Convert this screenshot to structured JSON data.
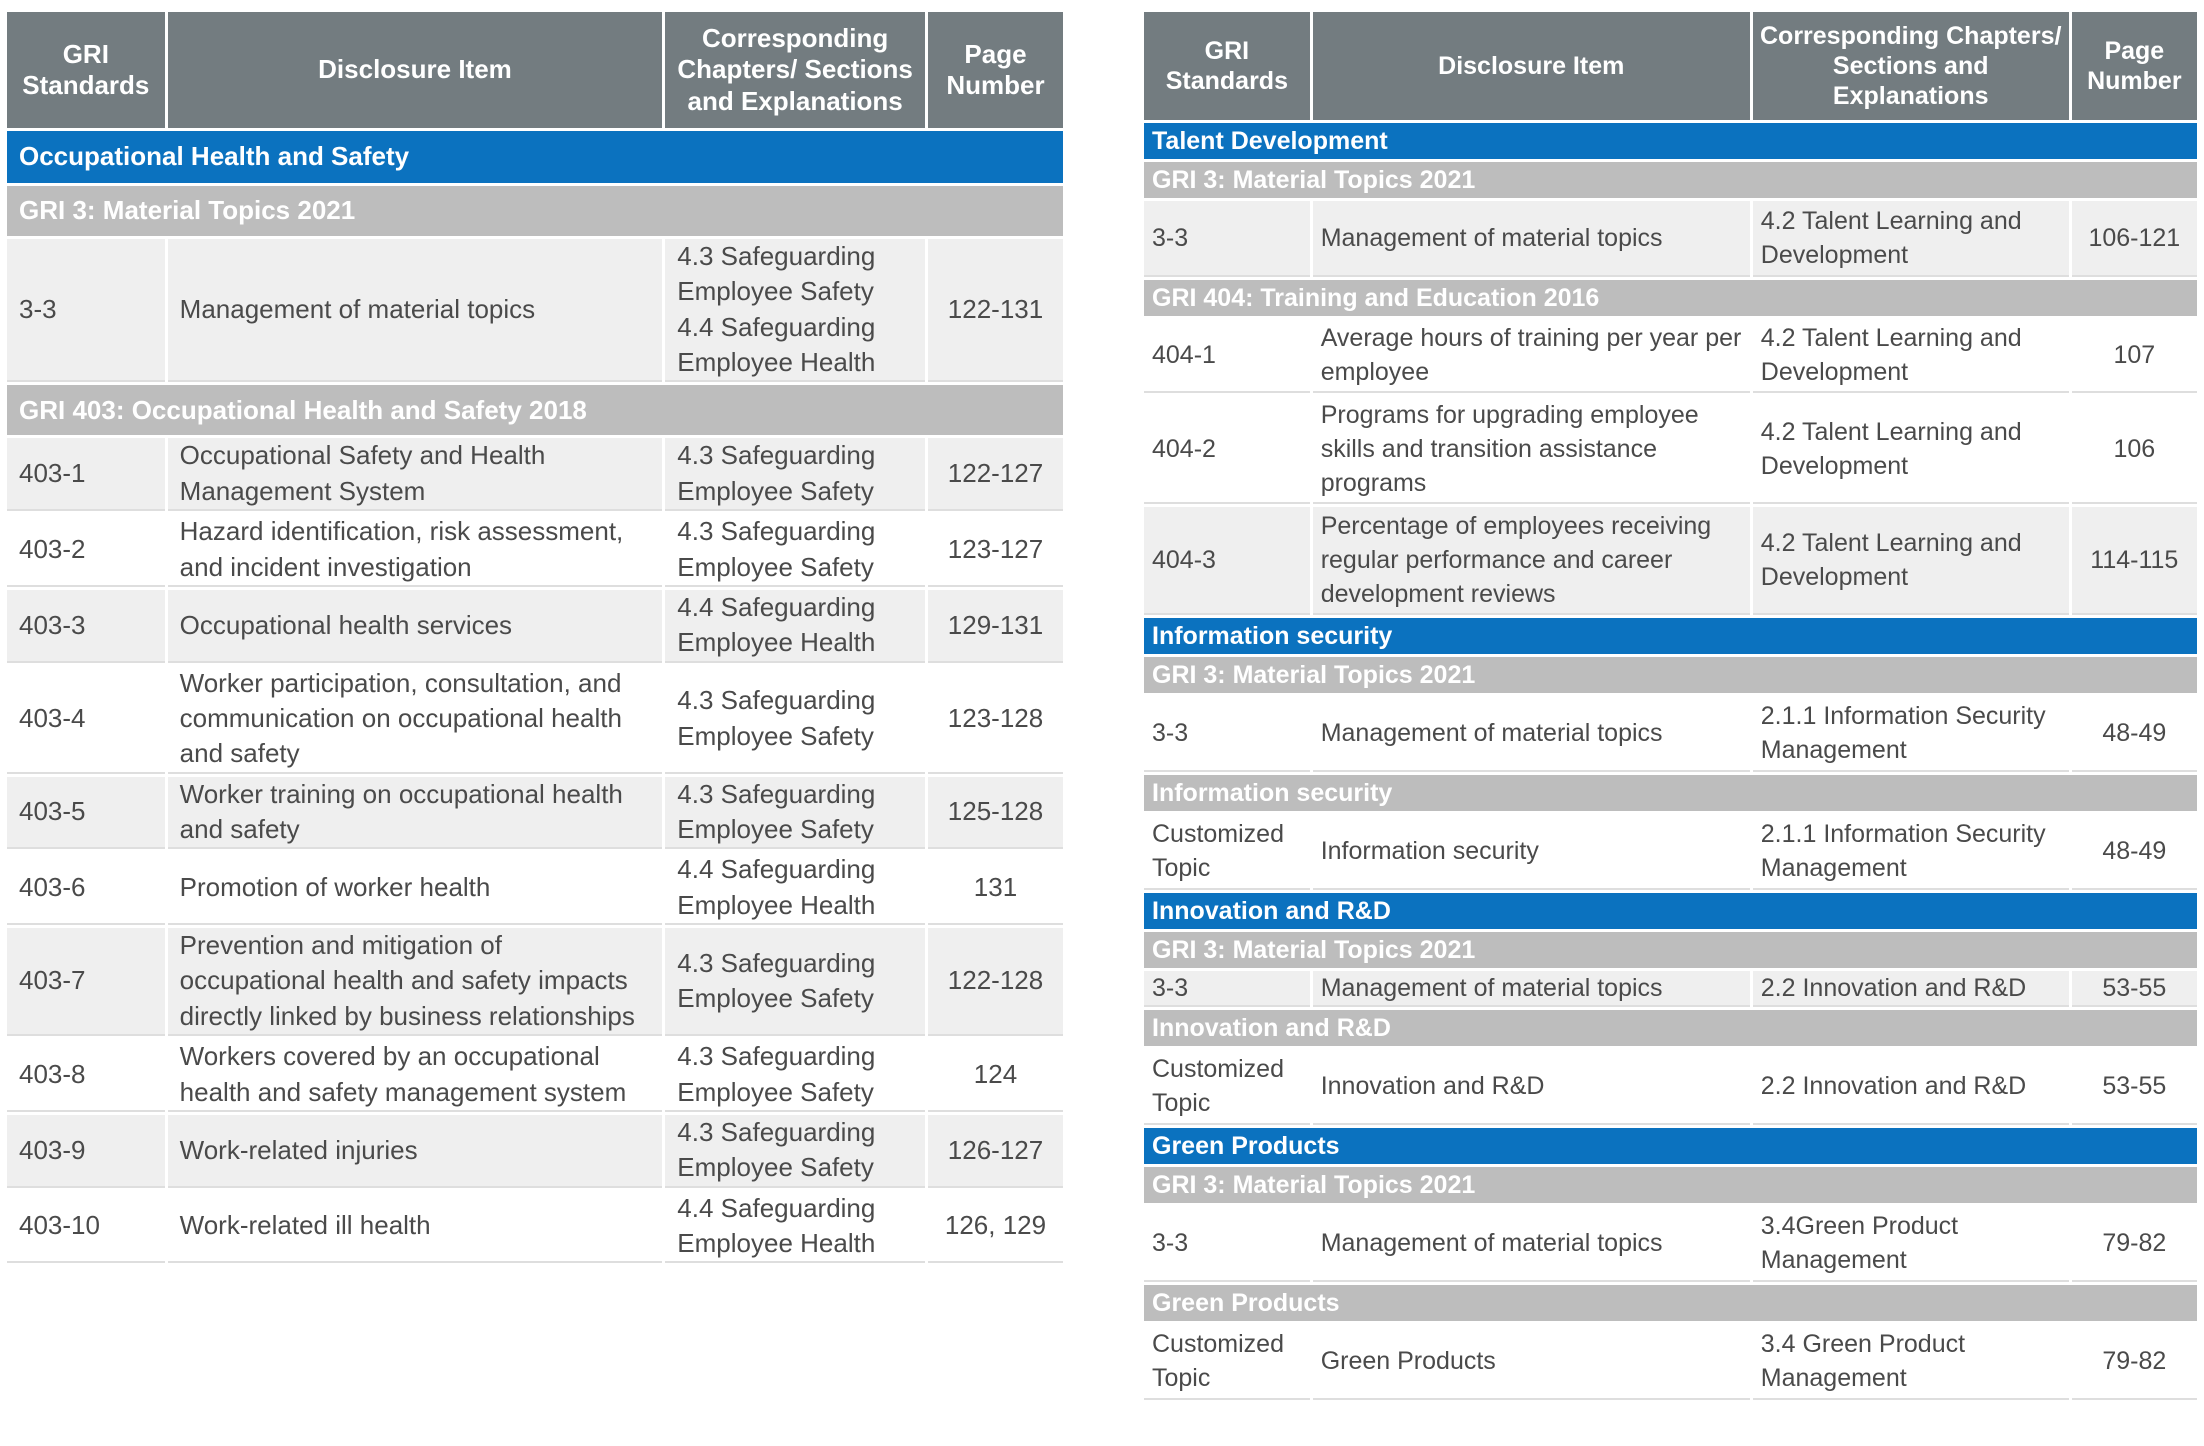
{
  "headers": {
    "gri_standards": "GRI Standards",
    "disclosure_item": "Disclosure Item",
    "chapters_left": "Corresponding Chapters/ Sections and Explanations",
    "chapters_right": "Corresponding Chapters/ Sections and Explanations",
    "page_number": "Page Number"
  },
  "left": {
    "topic": "Occupational Health and Safety",
    "sub1": "GRI 3: Material Topics 2021",
    "rows1": [
      {
        "code": "3-3",
        "item": "Management of material topics",
        "chapter": "4.3 Safeguarding Employee Safety 4.4 Safeguarding Employee Health",
        "page": "122-131"
      }
    ],
    "sub2": "GRI 403: Occupational Health and Safety 2018",
    "rows2": [
      {
        "code": "403-1",
        "item": "Occupational Safety and Health Management System",
        "chapter": "4.3 Safeguarding Employee Safety",
        "page": "122-127"
      },
      {
        "code": "403-2",
        "item": "Hazard identification, risk assessment, and incident investigation",
        "chapter": "4.3 Safeguarding Employee Safety",
        "page": "123-127"
      },
      {
        "code": "403-3",
        "item": "Occupational health services",
        "chapter": "4.4 Safeguarding Employee Health",
        "page": "129-131"
      },
      {
        "code": "403-4",
        "item": "Worker participation, consultation, and communication on occupational health and safety",
        "chapter": "4.3 Safeguarding Employee Safety",
        "page": "123-128"
      },
      {
        "code": "403-5",
        "item": "Worker training on occupational health and safety",
        "chapter": "4.3 Safeguarding Employee Safety",
        "page": "125-128"
      },
      {
        "code": "403-6",
        "item": "Promotion of worker health",
        "chapter": "4.4 Safeguarding Employee Health",
        "page": "131"
      },
      {
        "code": "403-7",
        "item": "Prevention and mitigation of occupational health and safety impacts directly linked by business relationships",
        "chapter": "4.3 Safeguarding Employee Safety",
        "page": "122-128"
      },
      {
        "code": "403-8",
        "item": "Workers covered by an occupational health and safety management system",
        "chapter": "4.3 Safeguarding Employee Safety",
        "page": "124"
      },
      {
        "code": "403-9",
        "item": "Work-related injuries",
        "chapter": "4.3 Safeguarding Employee Safety",
        "page": "126-127"
      },
      {
        "code": "403-10",
        "item": "Work-related ill health",
        "chapter": "4.4 Safeguarding Employee Health",
        "page": "126, 129"
      }
    ]
  },
  "right": {
    "talent": {
      "topic": "Talent Development",
      "sub1": "GRI 3: Material Topics 2021",
      "mt": {
        "code": "3-3",
        "item": "Management of material topics",
        "chapter": "4.2 Talent Learning and Development",
        "page": "106-121"
      },
      "sub2": "GRI 404: Training and Education 2016",
      "rows": [
        {
          "code": "404-1",
          "item": "Average hours of training per year per employee",
          "chapter": "4.2 Talent Learning and Development",
          "page": "107"
        },
        {
          "code": "404-2",
          "item": "Programs for upgrading employee skills and transition assistance programs",
          "chapter": "4.2 Talent Learning and Development",
          "page": "106"
        },
        {
          "code": "404-3",
          "item": "Percentage of employees receiving regular performance and career development reviews",
          "chapter": "4.2 Talent Learning and Development",
          "page": "114-115"
        }
      ]
    },
    "infosec": {
      "topic": "Information security",
      "sub1": "GRI 3: Material Topics 2021",
      "mt": {
        "code": "3-3",
        "item": "Management of material topics",
        "chapter": "2.1.1 Information Security Management",
        "page": "48-49"
      },
      "sub2": "Information security",
      "custom": {
        "code": "Customized Topic",
        "item": "Information security",
        "chapter": "2.1.1 Information Security Management",
        "page": "48-49"
      }
    },
    "innovation": {
      "topic": "Innovation and R&D",
      "sub1": "GRI 3: Material Topics 2021",
      "mt": {
        "code": "3-3",
        "item": "Management of material topics",
        "chapter": "2.2 Innovation and R&D",
        "page": "53-55"
      },
      "sub2": "Innovation and R&D",
      "custom": {
        "code": "Customized Topic",
        "item": "Innovation and R&D",
        "chapter": "2.2 Innovation and R&D",
        "page": "53-55"
      }
    },
    "green": {
      "topic": "Green Products",
      "sub1": "GRI 3: Material Topics 2021",
      "mt": {
        "code": "3-3",
        "item": "Management of material topics",
        "chapter": "3.4Green Product Management",
        "page": "79-82"
      },
      "sub2": "Green Products",
      "custom": {
        "code": "Customized Topic",
        "item": "Green Products",
        "chapter": "3.4 Green Product Management",
        "page": "79-82"
      }
    }
  }
}
